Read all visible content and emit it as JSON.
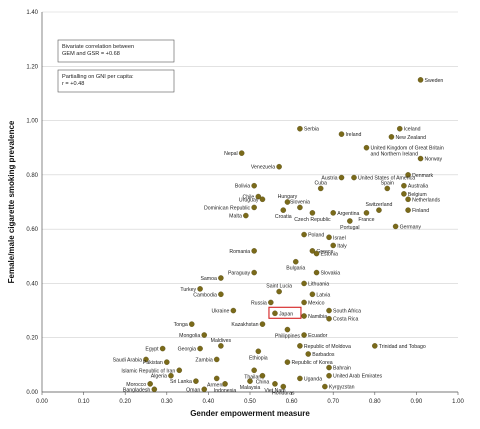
{
  "chart_data": {
    "type": "scatter",
    "xlabel": "Gender empowerment measure",
    "ylabel": "Female/male cigarette smoking prevalence",
    "xlim": [
      0,
      1
    ],
    "ylim": [
      0,
      1.4
    ],
    "xticks": [
      "0.00",
      "0.10",
      "0.20",
      "0.30",
      "0.40",
      "0.50",
      "0.60",
      "0.70",
      "0.80",
      "0.90",
      "1.00"
    ],
    "yticks": [
      "0.00",
      "0.20",
      "0.40",
      "0.60",
      "0.80",
      "1.00",
      "1.20",
      "1.40"
    ],
    "grid": "horizontal",
    "marker_color": "#7a6a1a",
    "highlight_color": "#d42020",
    "highlight_label": "Japan",
    "annotations": [
      [
        "Bivariate correlation between",
        "GEM and GSR = +0.68"
      ],
      [
        "Partialling on GNI per capita:",
        "r = +0.48"
      ]
    ],
    "points": [
      {
        "label": "Sweden",
        "x": 0.91,
        "y": 1.15
      },
      {
        "label": "Serbia",
        "x": 0.62,
        "y": 0.97
      },
      {
        "label": "Ireland",
        "x": 0.72,
        "y": 0.95
      },
      {
        "label": "Iceland",
        "x": 0.86,
        "y": 0.97
      },
      {
        "label": "New Zealand",
        "x": 0.84,
        "y": 0.94
      },
      {
        "label": "United Kingdom of Great Britain",
        "x": 0.78,
        "y": 0.9
      },
      {
        "label": "and Northern Ireland",
        "x": 0.78,
        "y": 0.9,
        "label_only": true
      },
      {
        "label": "Nepal",
        "x": 0.48,
        "y": 0.88
      },
      {
        "label": "Norway",
        "x": 0.91,
        "y": 0.86
      },
      {
        "label": "Venezuela",
        "x": 0.57,
        "y": 0.83
      },
      {
        "label": "Denmark",
        "x": 0.88,
        "y": 0.8
      },
      {
        "label": "United States of America",
        "x": 0.75,
        "y": 0.79
      },
      {
        "label": "Austria",
        "x": 0.72,
        "y": 0.79
      },
      {
        "label": "Australia",
        "x": 0.87,
        "y": 0.76
      },
      {
        "label": "Bolivia",
        "x": 0.51,
        "y": 0.76
      },
      {
        "label": "Cuba",
        "x": 0.67,
        "y": 0.75
      },
      {
        "label": "Spain",
        "x": 0.83,
        "y": 0.75
      },
      {
        "label": "Belgium",
        "x": 0.87,
        "y": 0.73
      },
      {
        "label": "Chile",
        "x": 0.52,
        "y": 0.72
      },
      {
        "label": "Uruguay",
        "x": 0.53,
        "y": 0.71
      },
      {
        "label": "Hungary",
        "x": 0.59,
        "y": 0.7
      },
      {
        "label": "Netherlands",
        "x": 0.88,
        "y": 0.71
      },
      {
        "label": "Dominican Republic",
        "x": 0.51,
        "y": 0.68
      },
      {
        "label": "Slovenia",
        "x": 0.62,
        "y": 0.68
      },
      {
        "label": "Argentina",
        "x": 0.7,
        "y": 0.66
      },
      {
        "label": "Switzerland",
        "x": 0.81,
        "y": 0.67
      },
      {
        "label": "Finland",
        "x": 0.88,
        "y": 0.67
      },
      {
        "label": "Malta",
        "x": 0.49,
        "y": 0.65
      },
      {
        "label": "Croatia",
        "x": 0.58,
        "y": 0.67
      },
      {
        "label": "Czech Republic",
        "x": 0.65,
        "y": 0.66
      },
      {
        "label": "France",
        "x": 0.78,
        "y": 0.66
      },
      {
        "label": "Portugal",
        "x": 0.74,
        "y": 0.63
      },
      {
        "label": "Germany",
        "x": 0.85,
        "y": 0.61
      },
      {
        "label": "Poland",
        "x": 0.63,
        "y": 0.58
      },
      {
        "label": "Israel",
        "x": 0.69,
        "y": 0.57
      },
      {
        "label": "Italy",
        "x": 0.7,
        "y": 0.54
      },
      {
        "label": "Greece",
        "x": 0.65,
        "y": 0.52
      },
      {
        "label": "Romania",
        "x": 0.51,
        "y": 0.52
      },
      {
        "label": "Estonia",
        "x": 0.66,
        "y": 0.51
      },
      {
        "label": "Bulgaria",
        "x": 0.61,
        "y": 0.48
      },
      {
        "label": "Slovakia",
        "x": 0.66,
        "y": 0.44
      },
      {
        "label": "Paraguay",
        "x": 0.51,
        "y": 0.44
      },
      {
        "label": "Samoa",
        "x": 0.43,
        "y": 0.42
      },
      {
        "label": "Lithuania",
        "x": 0.63,
        "y": 0.4
      },
      {
        "label": "Turkey",
        "x": 0.38,
        "y": 0.38
      },
      {
        "label": "Cambodia",
        "x": 0.43,
        "y": 0.36
      },
      {
        "label": "Saint Lucia",
        "x": 0.57,
        "y": 0.37
      },
      {
        "label": "Latvia",
        "x": 0.65,
        "y": 0.36
      },
      {
        "label": "Russia",
        "x": 0.55,
        "y": 0.33
      },
      {
        "label": "Mexico",
        "x": 0.63,
        "y": 0.33
      },
      {
        "label": "Ukraine",
        "x": 0.46,
        "y": 0.3
      },
      {
        "label": "Japan",
        "x": 0.56,
        "y": 0.29
      },
      {
        "label": "South Africa",
        "x": 0.69,
        "y": 0.3
      },
      {
        "label": "Namibia",
        "x": 0.63,
        "y": 0.28
      },
      {
        "label": "Costa Rica",
        "x": 0.69,
        "y": 0.27
      },
      {
        "label": "Tonga",
        "x": 0.36,
        "y": 0.25
      },
      {
        "label": "Kazakhstan",
        "x": 0.53,
        "y": 0.25
      },
      {
        "label": "Philippines",
        "x": 0.59,
        "y": 0.23
      },
      {
        "label": "Mongolia",
        "x": 0.39,
        "y": 0.21
      },
      {
        "label": "Ecuador",
        "x": 0.63,
        "y": 0.21
      },
      {
        "label": "Maldives",
        "x": 0.43,
        "y": 0.17
      },
      {
        "label": "Egypt",
        "x": 0.29,
        "y": 0.16
      },
      {
        "label": "Georgia",
        "x": 0.38,
        "y": 0.16
      },
      {
        "label": "Republic of Moldova",
        "x": 0.62,
        "y": 0.17
      },
      {
        "label": "Trinidad and Tobago",
        "x": 0.8,
        "y": 0.17
      },
      {
        "label": "Ethiopia",
        "x": 0.52,
        "y": 0.15
      },
      {
        "label": "Barbados",
        "x": 0.64,
        "y": 0.14
      },
      {
        "label": "Saudi Arabia",
        "x": 0.25,
        "y": 0.12
      },
      {
        "label": "Pakistan",
        "x": 0.3,
        "y": 0.11
      },
      {
        "label": "Zambia",
        "x": 0.42,
        "y": 0.12
      },
      {
        "label": "Republic of Korea",
        "x": 0.59,
        "y": 0.11
      },
      {
        "label": "Bahrain",
        "x": 0.69,
        "y": 0.09
      },
      {
        "label": "Islamic Republic of Iran",
        "x": 0.33,
        "y": 0.08
      },
      {
        "label": "Thailand",
        "x": 0.51,
        "y": 0.08
      },
      {
        "label": "Algeria",
        "x": 0.31,
        "y": 0.06
      },
      {
        "label": "China",
        "x": 0.53,
        "y": 0.06
      },
      {
        "label": "United Arab Emirates",
        "x": 0.69,
        "y": 0.06
      },
      {
        "label": "Armenia",
        "x": 0.42,
        "y": 0.05
      },
      {
        "label": "Uganda",
        "x": 0.62,
        "y": 0.05
      },
      {
        "label": "Sri Lanka",
        "x": 0.37,
        "y": 0.04
      },
      {
        "label": "Morocco",
        "x": 0.26,
        "y": 0.03
      },
      {
        "label": "Indonesia",
        "x": 0.44,
        "y": 0.03
      },
      {
        "label": "Malaysia",
        "x": 0.5,
        "y": 0.04
      },
      {
        "label": "Viet Nam",
        "x": 0.56,
        "y": 0.03
      },
      {
        "label": "Kyrgyzstan",
        "x": 0.68,
        "y": 0.02
      },
      {
        "label": "Bangladesh",
        "x": 0.27,
        "y": 0.01
      },
      {
        "label": "Oman",
        "x": 0.39,
        "y": 0.01
      },
      {
        "label": "Honduras",
        "x": 0.58,
        "y": 0.02
      }
    ]
  }
}
